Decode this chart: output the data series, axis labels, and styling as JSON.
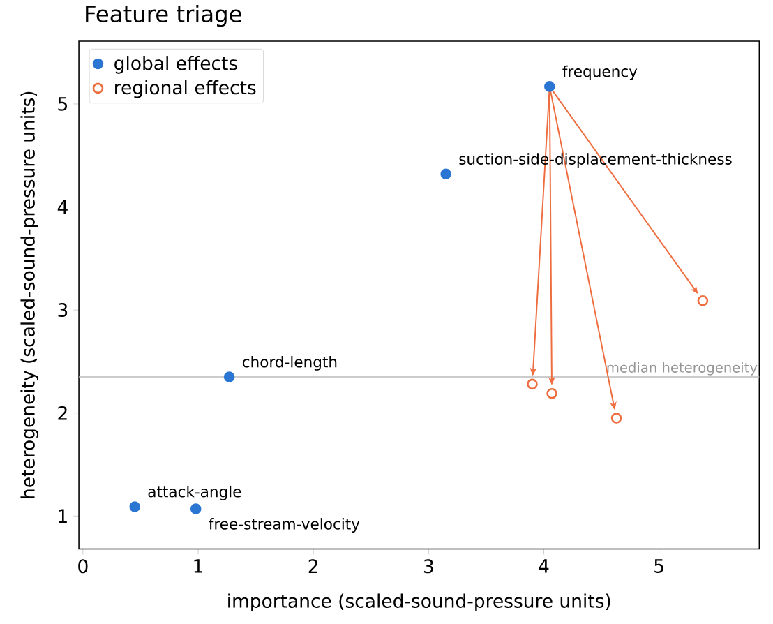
{
  "chart_data": {
    "type": "scatter",
    "title": "Feature triage",
    "xlabel": "importance (scaled-sound-pressure units)",
    "ylabel": "heterogeneity (scaled-sound-pressure units)",
    "series": [
      {
        "name": "global effects",
        "color": "#2a76d2",
        "x": [
          4.05,
          3.15,
          1.27,
          0.45,
          0.98
        ],
        "values": [
          5.17,
          4.32,
          2.35,
          1.09,
          1.07
        ]
      },
      {
        "name": "regional effects",
        "color": "#ee6d3f",
        "x": [
          5.38,
          3.9,
          4.07,
          4.63
        ],
        "values": [
          3.09,
          2.28,
          2.19,
          1.95
        ]
      }
    ],
    "annotations": [
      {
        "text": "frequency",
        "x": 4.05,
        "y": 5.17
      },
      {
        "text": "suction-side-displacement-thickness",
        "x": 3.15,
        "y": 4.32
      },
      {
        "text": "chord-length",
        "x": 1.27,
        "y": 2.35
      },
      {
        "text": "attack-angle",
        "x": 0.45,
        "y": 1.09
      },
      {
        "text": "free-stream-velocity",
        "x": 0.98,
        "y": 1.07
      }
    ],
    "ref_lines": [
      {
        "axis": "y",
        "value": 2.35,
        "label": "median heterogeneity",
        "color": "#bbbbbb"
      }
    ],
    "xlim": [
      -0.035,
      5.87
    ],
    "ylim": [
      0.68,
      5.61
    ],
    "xticks": [
      0,
      1,
      2,
      3,
      4,
      5
    ],
    "yticks": [
      1,
      2,
      3,
      4,
      5
    ],
    "marker": "circle",
    "legend": "top left",
    "grid": false
  }
}
